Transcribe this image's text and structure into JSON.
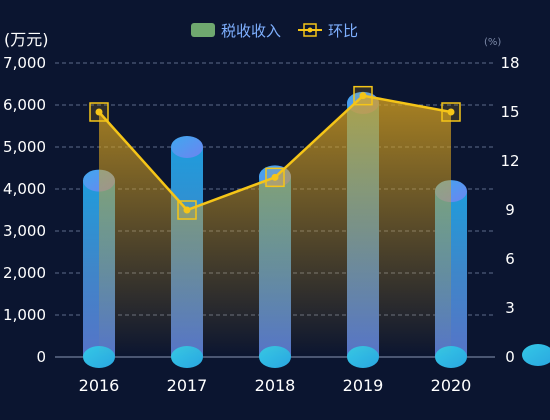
{
  "chart_data": {
    "type": "bar",
    "categories": [
      "2016",
      "2017",
      "2018",
      "2019",
      "2020"
    ],
    "series": [
      {
        "name": "税收收入",
        "type": "bar",
        "axis": "left",
        "values": [
          4200,
          5000,
          4300,
          6050,
          3950
        ]
      },
      {
        "name": "环比",
        "type": "line",
        "axis": "right",
        "values": [
          15,
          9,
          11,
          16,
          15
        ]
      }
    ],
    "y_left": {
      "unit_label": "(万元)",
      "ylim": [
        0,
        7000
      ],
      "ticks": [
        "0",
        "1,000",
        "2,000",
        "3,000",
        "4,000",
        "5,000",
        "6,000",
        "7,000"
      ]
    },
    "y_right": {
      "unit_label": "(%)",
      "ylim": [
        0,
        18
      ],
      "ticks": [
        "0",
        "3",
        "6",
        "9",
        "12",
        "15",
        "18"
      ]
    },
    "legend_position": "top-center",
    "grid": true,
    "colors": {
      "background": "#0b1530",
      "bar_top": "#5d9cf0",
      "bar_bottom": "#2ec1dc",
      "line": "#f5c518",
      "area": "#d9a31e",
      "legend_bar": "#6fa86f",
      "grid": "#5e6b8a"
    }
  }
}
